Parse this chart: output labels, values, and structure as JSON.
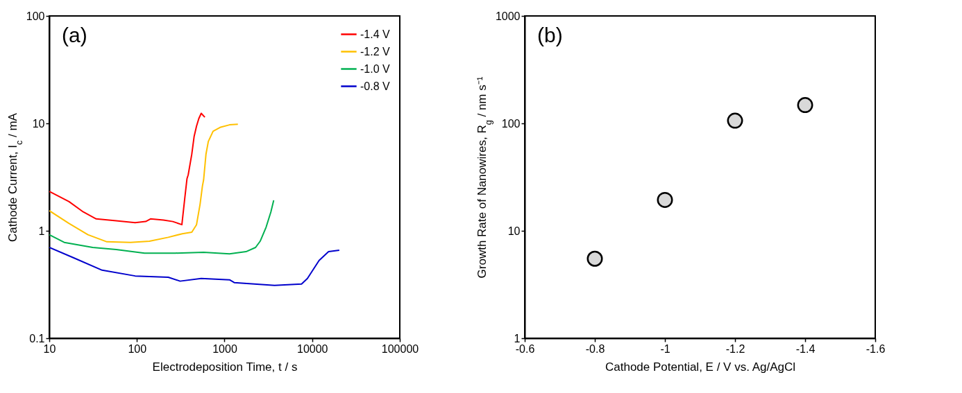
{
  "chart_data": [
    {
      "type": "line",
      "xlabel": "Electrodeposition Time, t / s",
      "ylabel": "Cathode Current, I$_{c}$ / mA",
      "log": "xy",
      "xlim": [
        10,
        100000
      ],
      "ylim": [
        0.1,
        100
      ],
      "xticks": [
        10,
        100,
        1000,
        10000,
        100000
      ],
      "yticks": [
        0.1,
        1,
        10,
        100
      ],
      "grid": false,
      "legend": "top right",
      "annotations": [
        "(a)"
      ],
      "series": [
        {
          "name": "-1.4 V",
          "color": "#ff0000",
          "x": [
            10,
            16.8,
            24.4,
            34.3,
            58,
            95.5,
            126,
            143,
            201,
            257,
            326,
            351,
            373,
            385,
            423,
            450,
            479,
            509,
            542,
            596
          ],
          "values": [
            2.33,
            1.87,
            1.5,
            1.29,
            1.24,
            1.19,
            1.22,
            1.29,
            1.26,
            1.22,
            1.14,
            1.98,
            3.06,
            3.32,
            5.17,
            7.57,
            9.42,
            11.1,
            12.4,
            11.4
          ]
        },
        {
          "name": "-1.2 V",
          "color": "#ffc000",
          "x": [
            10,
            16.8,
            27.6,
            45.4,
            84.4,
            139,
            228,
            330,
            423,
            479,
            526,
            559,
            577,
            614,
            653,
            740,
            889,
            1140,
            1420
          ],
          "values": [
            1.54,
            1.17,
            0.92,
            0.79,
            0.78,
            0.8,
            0.87,
            0.94,
            0.97,
            1.14,
            1.77,
            2.6,
            2.98,
            5.16,
            6.78,
            8.45,
            9.18,
            9.69,
            9.83
          ]
        },
        {
          "name": "-1.0 V",
          "color": "#00b050",
          "x": [
            10,
            14.8,
            31.3,
            58,
            122,
            274,
            577,
            1140,
            1760,
            2260,
            2550,
            2980,
            3380,
            3640
          ],
          "values": [
            0.92,
            0.78,
            0.7,
            0.67,
            0.62,
            0.62,
            0.63,
            0.61,
            0.64,
            0.7,
            0.8,
            1.08,
            1.5,
            1.92
          ]
        },
        {
          "name": "-0.8 V",
          "color": "#0000cc",
          "x": [
            10,
            19,
            40.1,
            95.5,
            228,
            311,
            542,
            1140,
            1290,
            3720,
            7570,
            8830,
            12000,
            15400,
            20400
          ],
          "values": [
            0.7,
            0.56,
            0.43,
            0.38,
            0.37,
            0.34,
            0.36,
            0.35,
            0.33,
            0.31,
            0.32,
            0.36,
            0.53,
            0.64,
            0.66
          ]
        }
      ]
    },
    {
      "type": "scatter",
      "xlabel": "Cathode Potential, E / V vs. Ag/AgCl",
      "ylabel": "Growth Rate of Nanowires, R$_{g}$ / nm s⁻¹",
      "log": "y",
      "xlim": [
        -0.6,
        -1.6
      ],
      "ylim": [
        1,
        1000
      ],
      "xticks": [
        -0.6,
        -0.8,
        -1,
        -1.2,
        -1.4,
        -1.6
      ],
      "yticks": [
        1,
        10,
        100,
        1000
      ],
      "grid": false,
      "marker": "circle",
      "annotations": [
        "(b)"
      ],
      "x": [
        -0.8,
        -1,
        -1.2,
        -1.4
      ],
      "values": [
        5.5,
        19.4,
        106,
        148
      ],
      "color": "#d9d9d9"
    }
  ]
}
